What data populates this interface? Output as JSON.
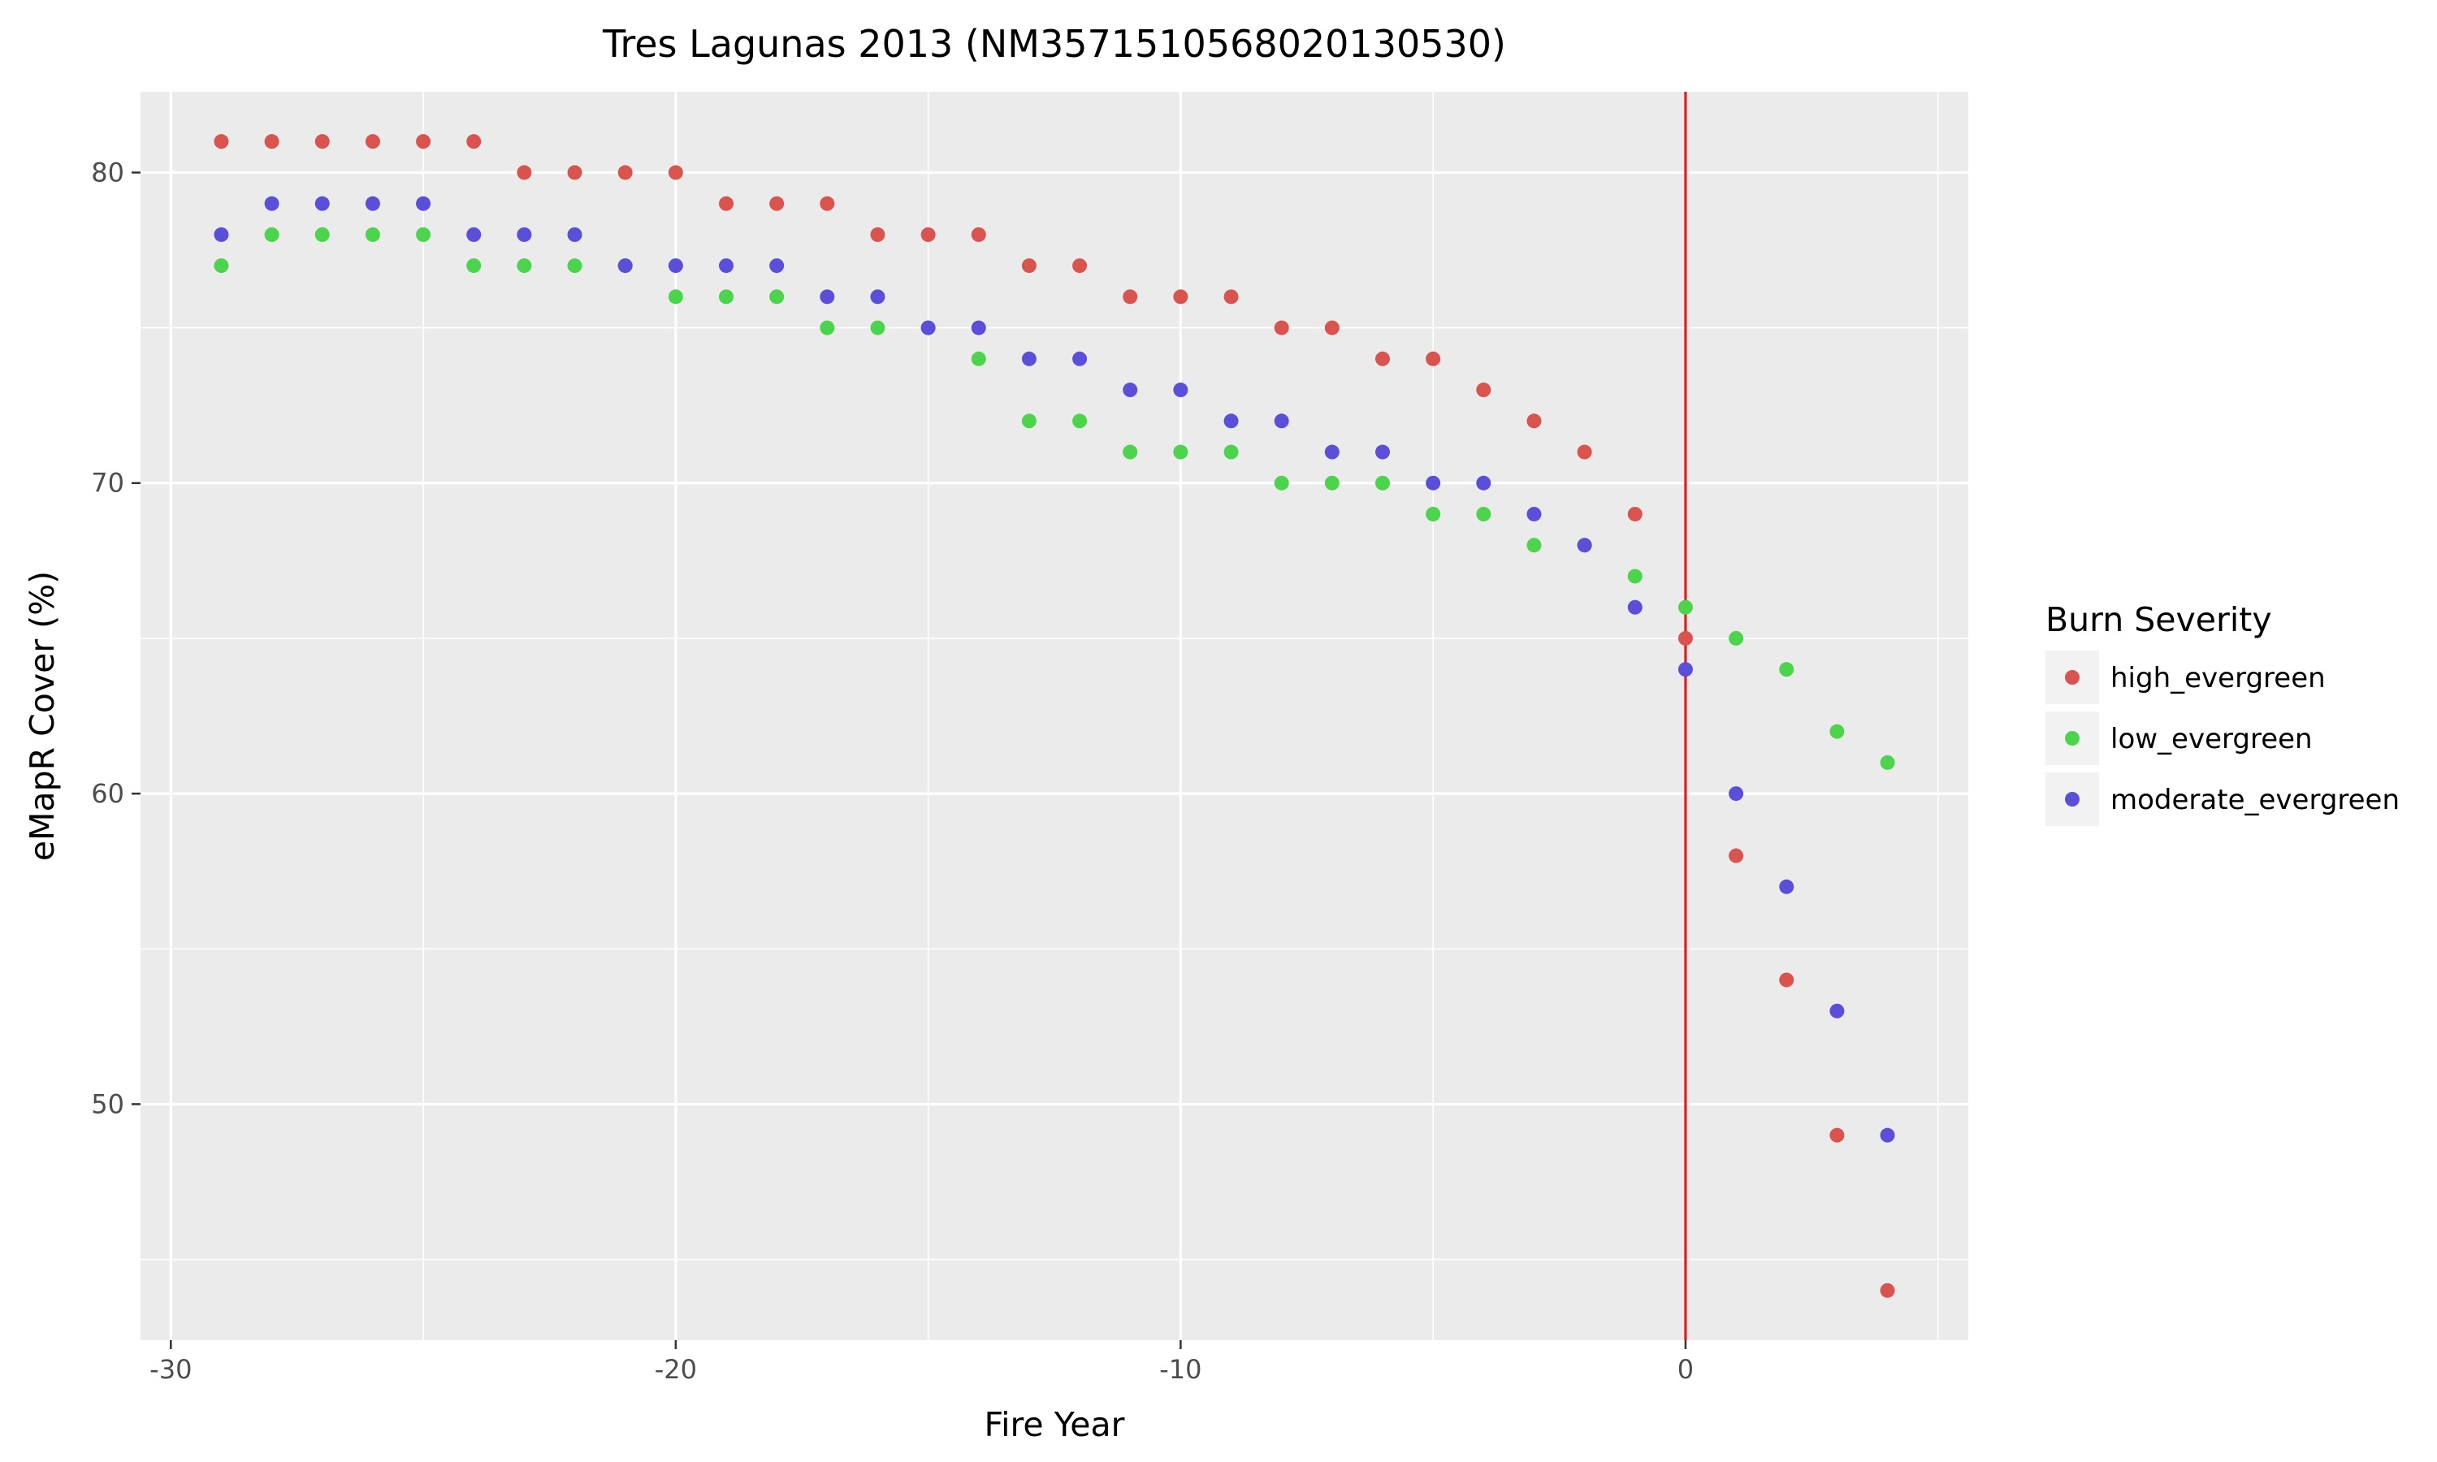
{
  "chart_data": {
    "type": "scatter",
    "title": "Tres Lagunas 2013 (NM3571510568020130530)",
    "xlabel": "Fire Year",
    "ylabel": "eMapR Cover (%)",
    "xlim": [
      -30.6,
      5.6
    ],
    "ylim": [
      42.4,
      82.6
    ],
    "x_ticks": [
      -30,
      -20,
      -10,
      0
    ],
    "x_tick_labels": [
      "-30",
      "-20",
      "-10",
      "0"
    ],
    "y_ticks": [
      50,
      60,
      70,
      80
    ],
    "y_tick_labels": [
      "50",
      "60",
      "70",
      "80"
    ],
    "grid": true,
    "legend_title": "Burn Severity",
    "legend_position": "right",
    "reference_line": {
      "x": 0,
      "color": "#e41a1c"
    },
    "x": [
      -29,
      -28,
      -27,
      -26,
      -25,
      -24,
      -23,
      -22,
      -21,
      -20,
      -19,
      -18,
      -17,
      -16,
      -15,
      -14,
      -13,
      -12,
      -11,
      -10,
      -9,
      -8,
      -7,
      -6,
      -5,
      -4,
      -3,
      -2,
      -1,
      0,
      1,
      2,
      3,
      4
    ],
    "series": [
      {
        "name": "high_evergreen",
        "color": "#d9534f",
        "values": [
          81,
          81,
          81,
          81,
          81,
          81,
          80,
          80,
          80,
          80,
          79,
          79,
          79,
          78,
          78,
          78,
          77,
          77,
          76,
          76,
          76,
          75,
          75,
          74,
          74,
          73,
          72,
          71,
          69,
          65,
          58,
          54,
          49,
          44
        ]
      },
      {
        "name": "low_evergreen",
        "color": "#4cd44c",
        "values": [
          77,
          78,
          78,
          78,
          78,
          77,
          77,
          77,
          77,
          76,
          76,
          76,
          75,
          75,
          75,
          74,
          72,
          72,
          71,
          71,
          71,
          70,
          70,
          70,
          69,
          69,
          68,
          68,
          67,
          66,
          65,
          64,
          62,
          61
        ]
      },
      {
        "name": "moderate_evergreen",
        "color": "#5b4fd9",
        "values": [
          78,
          79,
          79,
          79,
          79,
          78,
          78,
          78,
          77,
          77,
          77,
          77,
          76,
          76,
          75,
          75,
          74,
          74,
          73,
          73,
          72,
          72,
          71,
          71,
          70,
          70,
          69,
          68,
          66,
          64,
          60,
          57,
          53,
          49
        ]
      }
    ]
  }
}
